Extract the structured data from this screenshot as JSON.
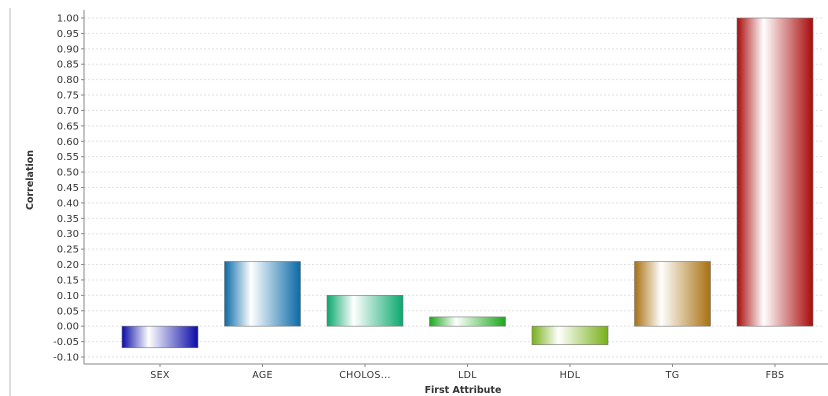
{
  "chart_data": {
    "type": "bar",
    "categories": [
      "SEX",
      "AGE",
      "CHOLOS...",
      "LDL",
      "HDL",
      "TG",
      "FBS"
    ],
    "values": [
      -0.07,
      0.21,
      0.1,
      0.03,
      -0.06,
      0.21,
      1.0
    ],
    "colors": [
      "#0a0aa8",
      "#0a6aa8",
      "#0aa86e",
      "#1aa81a",
      "#78b018",
      "#a87010",
      "#a80a0a"
    ],
    "xlabel": "First Attribute",
    "ylabel": "Correlation",
    "ylim": [
      -0.1,
      1.0
    ],
    "yticks": [
      "-0.10",
      "-0.05",
      "0.00",
      "0.05",
      "0.10",
      "0.15",
      "0.20",
      "0.25",
      "0.30",
      "0.35",
      "0.40",
      "0.45",
      "0.50",
      "0.55",
      "0.60",
      "0.65",
      "0.70",
      "0.75",
      "0.80",
      "0.85",
      "0.90",
      "0.95",
      "1.00"
    ],
    "grid": true,
    "legend": "none"
  }
}
